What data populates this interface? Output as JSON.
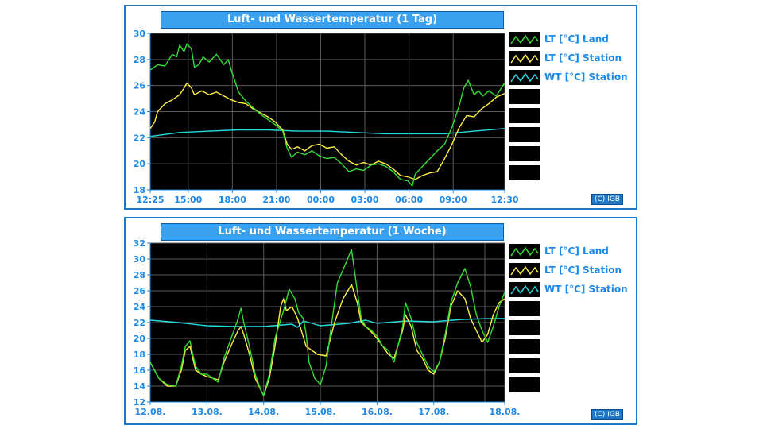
{
  "colors": {
    "land": "#33dd33",
    "station": "#ffee44",
    "water": "#22dde0",
    "axis_text": "#1e88e5"
  },
  "chart_data": [
    {
      "type": "line",
      "title": "Luft- und Wassertemperatur (1 Tag)",
      "ylim": [
        18,
        30
      ],
      "yticks": [
        18,
        20,
        22,
        24,
        26,
        28,
        30
      ],
      "xlim": [
        0,
        24.08
      ],
      "xticks": [
        {
          "x": 0,
          "label": "12:25"
        },
        {
          "x": 2.58,
          "label": "15:00"
        },
        {
          "x": 5.58,
          "label": "18:00"
        },
        {
          "x": 8.58,
          "label": "21:00"
        },
        {
          "x": 11.58,
          "label": "00:00"
        },
        {
          "x": 14.58,
          "label": "03:00"
        },
        {
          "x": 17.58,
          "label": "06:00"
        },
        {
          "x": 20.58,
          "label": "09:00"
        },
        {
          "x": 24.08,
          "label": "12:30"
        }
      ],
      "grid": true,
      "legend": "right",
      "series": [
        {
          "name": "LT [°C] Land",
          "color_key": "land",
          "x": [
            0,
            0.5,
            1,
            1.5,
            1.8,
            2,
            2.3,
            2.5,
            2.8,
            3,
            3.3,
            3.6,
            4,
            4.5,
            5,
            5.3,
            5.5,
            6,
            6.5,
            7,
            7.5,
            8,
            8.5,
            9,
            9.3,
            9.6,
            10,
            10.5,
            11,
            11.5,
            12,
            12.5,
            13,
            13.5,
            14,
            14.5,
            15,
            15.5,
            16,
            16.5,
            17,
            17.5,
            17.8,
            18,
            18.5,
            19,
            19.5,
            20,
            20.5,
            21,
            21.3,
            21.6,
            22,
            22.3,
            22.6,
            23,
            23.5,
            24.08
          ],
          "values": [
            27.2,
            27.6,
            27.5,
            28.4,
            28.2,
            29.1,
            28.6,
            29.2,
            28.8,
            27.4,
            27.6,
            28.2,
            27.8,
            28.4,
            27.6,
            28.0,
            27.2,
            25.5,
            24.8,
            24.3,
            23.8,
            23.4,
            23.0,
            22.5,
            21.2,
            20.5,
            20.9,
            20.7,
            21.0,
            20.6,
            20.4,
            20.5,
            20.0,
            19.4,
            19.6,
            19.5,
            19.9,
            20.0,
            19.8,
            19.4,
            18.8,
            18.7,
            18.3,
            19.2,
            19.8,
            20.4,
            21.0,
            21.5,
            22.8,
            24.5,
            25.8,
            26.4,
            25.3,
            25.6,
            25.2,
            25.6,
            25.2,
            26.2
          ]
        },
        {
          "name": "LT [°C] Station",
          "color_key": "station",
          "x": [
            0,
            0.3,
            0.5,
            1,
            1.5,
            2,
            2.3,
            2.5,
            2.8,
            3,
            3.5,
            4,
            4.5,
            5,
            5.5,
            6,
            6.5,
            7,
            7.5,
            8,
            8.5,
            9,
            9.3,
            9.6,
            10,
            10.5,
            11,
            11.5,
            12,
            12.5,
            13,
            13.5,
            14,
            14.5,
            15,
            15.5,
            16,
            16.5,
            17,
            17.5,
            18,
            18.5,
            19,
            19.5,
            20,
            20.5,
            21,
            21.5,
            22,
            22.5,
            23,
            23.5,
            24.08
          ],
          "values": [
            22.7,
            23.2,
            24.0,
            24.6,
            24.9,
            25.3,
            25.8,
            26.2,
            25.8,
            25.3,
            25.6,
            25.3,
            25.5,
            25.2,
            24.9,
            24.7,
            24.6,
            24.2,
            23.9,
            23.6,
            23.2,
            22.6,
            21.5,
            21.1,
            21.3,
            21.0,
            21.4,
            21.5,
            21.2,
            21.3,
            20.7,
            20.2,
            19.9,
            20.1,
            19.9,
            20.2,
            20.0,
            19.6,
            19.1,
            19.0,
            18.8,
            19.1,
            19.3,
            19.4,
            20.4,
            21.5,
            22.8,
            23.7,
            23.6,
            24.2,
            24.6,
            25.1,
            25.4
          ]
        },
        {
          "name": "WT [°C] Station",
          "color_key": "water",
          "x": [
            0,
            2,
            4,
            6,
            8,
            10,
            12,
            14,
            16,
            18,
            20,
            22,
            24.08
          ],
          "values": [
            22.1,
            22.4,
            22.5,
            22.6,
            22.6,
            22.5,
            22.5,
            22.4,
            22.3,
            22.3,
            22.3,
            22.5,
            22.7
          ]
        }
      ]
    },
    {
      "type": "line",
      "title": "Luft- und Wassertemperatur (1 Woche)",
      "ylim": [
        12,
        32
      ],
      "yticks": [
        12,
        14,
        16,
        18,
        20,
        22,
        24,
        26,
        28,
        30,
        32
      ],
      "xlim": [
        0,
        6.25
      ],
      "xticks": [
        {
          "x": 0,
          "label": "12.08."
        },
        {
          "x": 1,
          "label": "13.08."
        },
        {
          "x": 2,
          "label": "14.08."
        },
        {
          "x": 3,
          "label": "15.08."
        },
        {
          "x": 4,
          "label": "16.08."
        },
        {
          "x": 5,
          "label": "17.08."
        },
        {
          "x": 6.25,
          "label": "18.08."
        }
      ],
      "vgrid": [
        0,
        1,
        2,
        3,
        4,
        5,
        5.9,
        6.25
      ],
      "grid": true,
      "legend": "right",
      "series": [
        {
          "name": "LT [°C] Land",
          "color_key": "land",
          "x": [
            0,
            0.15,
            0.3,
            0.45,
            0.55,
            0.62,
            0.7,
            0.75,
            0.8,
            0.9,
            1.0,
            1.2,
            1.3,
            1.45,
            1.55,
            1.6,
            1.65,
            1.75,
            1.85,
            1.95,
            2.0,
            2.1,
            2.2,
            2.35,
            2.45,
            2.55,
            2.62,
            2.7,
            2.75,
            2.8,
            2.9,
            3.0,
            3.1,
            3.2,
            3.3,
            3.42,
            3.55,
            3.65,
            3.72,
            3.8,
            3.9,
            4.0,
            4.1,
            4.2,
            4.3,
            4.45,
            4.5,
            4.6,
            4.7,
            4.8,
            4.9,
            5.0,
            5.1,
            5.2,
            5.3,
            5.42,
            5.55,
            5.65,
            5.75,
            5.85,
            5.95,
            6.05,
            6.15,
            6.25
          ],
          "values": [
            17,
            15,
            14.2,
            14.0,
            16.5,
            19.0,
            19.7,
            18.0,
            16.5,
            15.5,
            15.5,
            14.5,
            17.5,
            20.5,
            22.5,
            23.8,
            22.0,
            19.0,
            15.5,
            13.5,
            12.8,
            15.5,
            20.0,
            23.5,
            26.2,
            25.0,
            23.2,
            22.5,
            20.5,
            17.0,
            15.0,
            14.2,
            16.5,
            22.0,
            27.0,
            29.0,
            31.2,
            26.0,
            22.5,
            21.5,
            21.0,
            20.3,
            19.0,
            18.5,
            17.0,
            21.5,
            24.5,
            22.5,
            19.5,
            18.0,
            16.5,
            15.8,
            17.0,
            20.5,
            24.5,
            27.0,
            28.8,
            26.5,
            23.0,
            21.0,
            19.5,
            21.5,
            24.0,
            25.8
          ]
        },
        {
          "name": "LT [°C] Station",
          "color_key": "station",
          "x": [
            0,
            0.15,
            0.3,
            0.45,
            0.55,
            0.62,
            0.7,
            0.75,
            0.8,
            0.9,
            1.0,
            1.2,
            1.3,
            1.45,
            1.55,
            1.6,
            1.65,
            1.75,
            1.85,
            1.95,
            2.0,
            2.1,
            2.2,
            2.3,
            2.35,
            2.4,
            2.5,
            2.6,
            2.75,
            2.95,
            3.1,
            3.25,
            3.4,
            3.55,
            3.65,
            3.72,
            3.8,
            3.9,
            4.0,
            4.1,
            4.2,
            4.3,
            4.45,
            4.5,
            4.6,
            4.7,
            4.8,
            4.9,
            5.0,
            5.1,
            5.2,
            5.3,
            5.42,
            5.55,
            5.65,
            5.75,
            5.85,
            5.95,
            6.05,
            6.15,
            6.25
          ],
          "values": [
            17,
            15,
            14.0,
            14.0,
            16.0,
            18.5,
            19.0,
            17.5,
            16.0,
            15.5,
            15.2,
            14.8,
            17.0,
            19.5,
            21.0,
            21.5,
            20.5,
            18.0,
            15.0,
            13.5,
            12.8,
            15.0,
            19.0,
            24.0,
            25.0,
            23.5,
            24.0,
            22.5,
            19.0,
            18.0,
            17.8,
            22.0,
            25.0,
            26.8,
            24.5,
            22.0,
            21.5,
            20.8,
            20.0,
            19.0,
            18.0,
            17.5,
            21.0,
            23.0,
            21.5,
            18.5,
            17.5,
            16.0,
            15.5,
            17.0,
            20.0,
            24.0,
            26.0,
            25.0,
            22.5,
            21.0,
            19.5,
            20.5,
            23.0,
            24.5,
            25.0
          ]
        },
        {
          "name": "WT [°C] Station",
          "color_key": "water",
          "x": [
            0,
            0.5,
            1.0,
            1.5,
            2.0,
            2.5,
            2.6,
            2.7,
            3.0,
            3.5,
            3.8,
            4.0,
            4.5,
            5.0,
            5.5,
            6.0,
            6.25
          ],
          "values": [
            22.3,
            22.0,
            21.6,
            21.5,
            21.5,
            21.8,
            21.4,
            22.2,
            21.6,
            21.9,
            22.3,
            21.9,
            22.2,
            22.1,
            22.4,
            22.5,
            22.5
          ]
        }
      ]
    }
  ],
  "panels": [
    {
      "title": "Luft- und Wassertemperatur (1 Tag)",
      "legend": [
        "LT [°C] Land",
        "LT [°C] Station",
        "WT [°C] Station"
      ],
      "copyright": "(C) IGB"
    },
    {
      "title": "Luft- und Wassertemperatur (1 Woche)",
      "legend": [
        "LT [°C] Land",
        "LT [°C] Station",
        "WT [°C] Station"
      ],
      "copyright": "(C) IGB"
    }
  ]
}
